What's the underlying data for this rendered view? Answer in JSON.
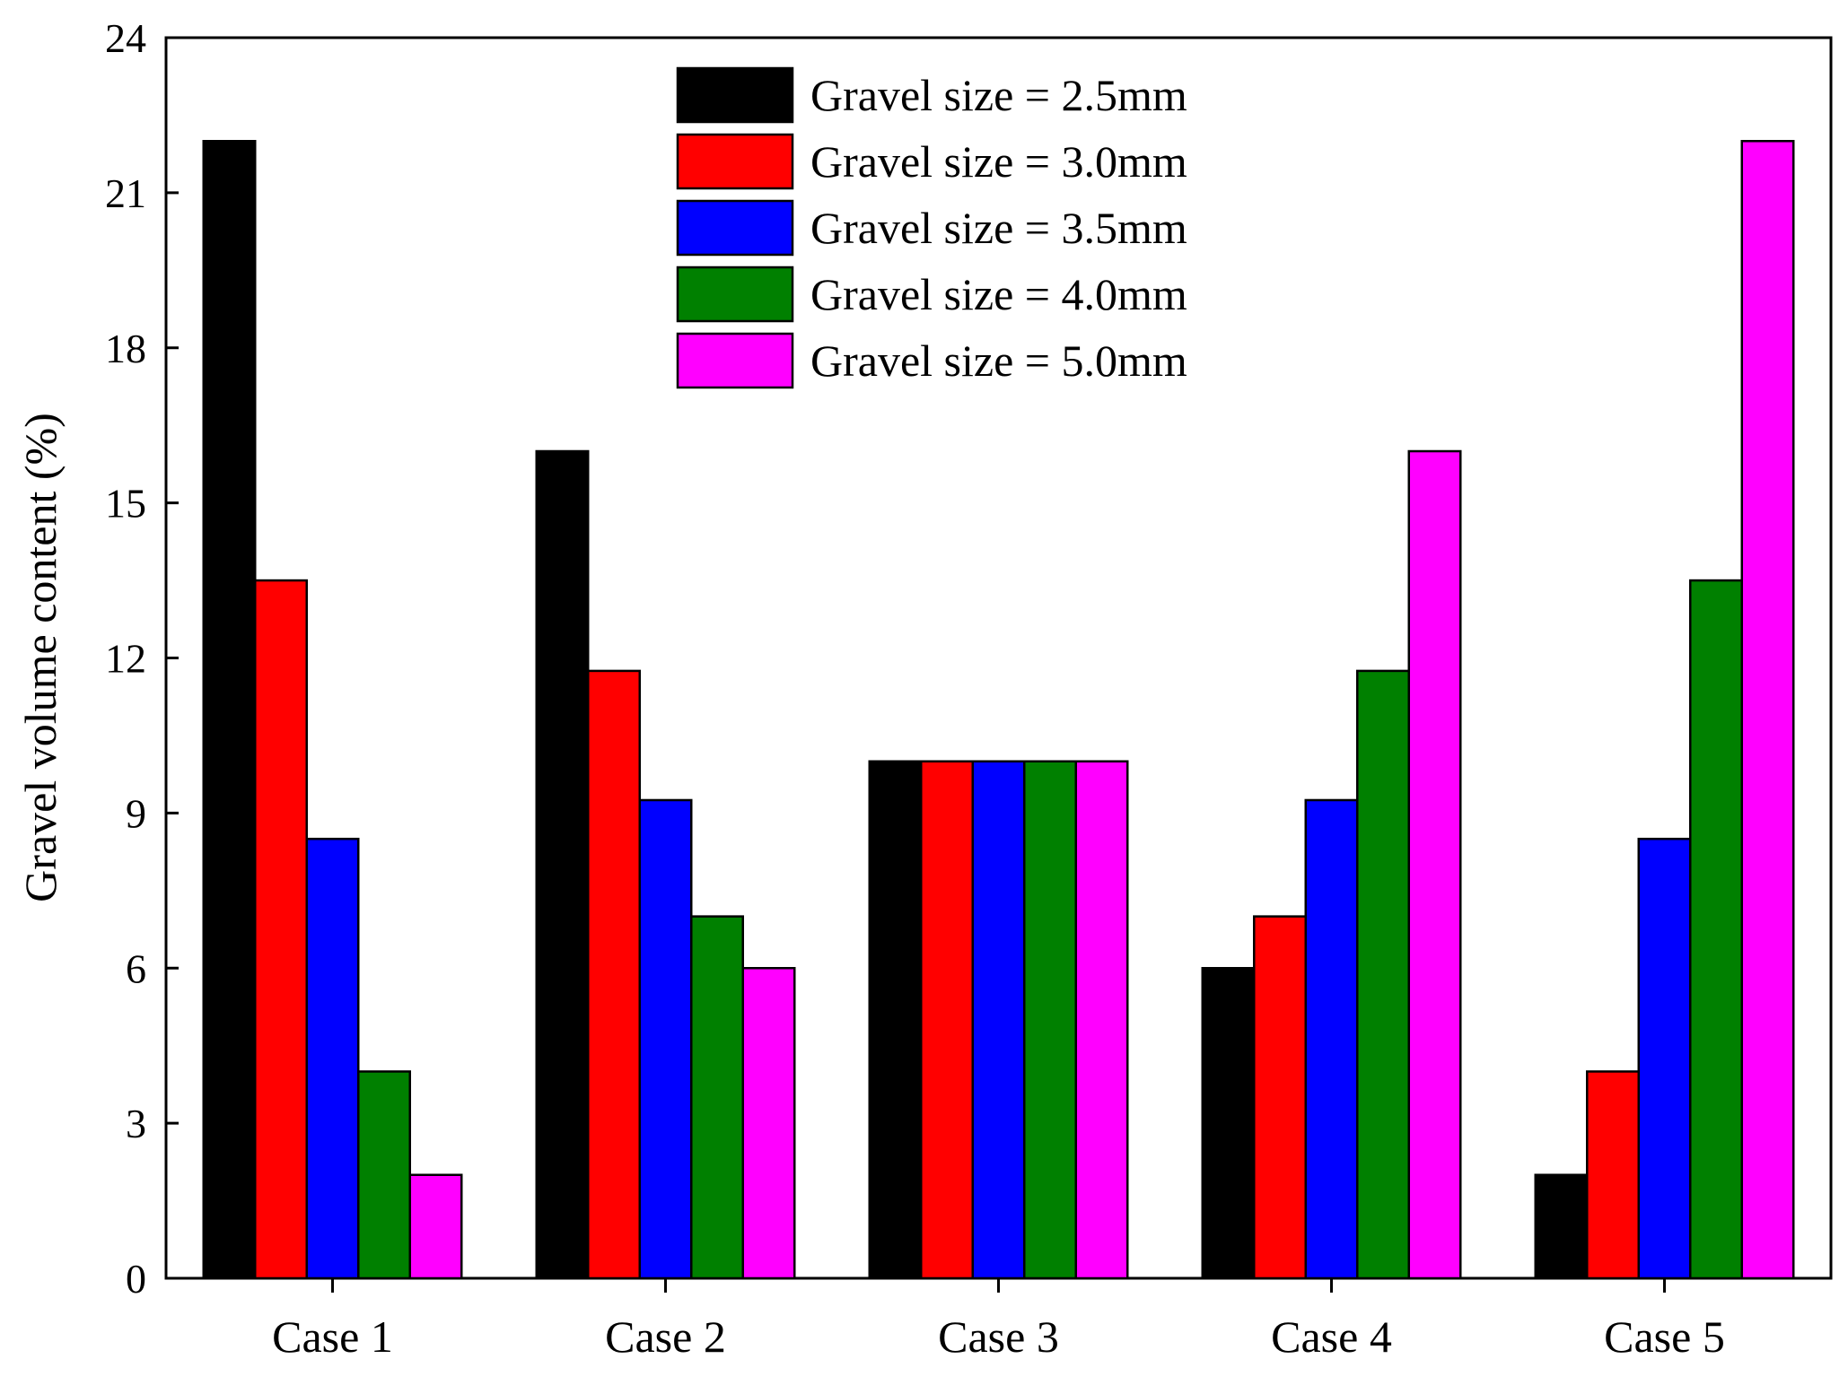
{
  "chart_data": {
    "type": "bar",
    "title": "",
    "xlabel": "",
    "ylabel": "Gravel volume content (%)",
    "ylim": [
      0,
      24
    ],
    "yticks": [
      "0",
      "3",
      "6",
      "9",
      "12",
      "15",
      "18",
      "21",
      "24"
    ],
    "grid": false,
    "legend_position": "top-center",
    "categories": [
      "Case 1",
      "Case 2",
      "Case 3",
      "Case 4",
      "Case 5"
    ],
    "series": [
      {
        "name": "Gravel size = 2.5mm",
        "color": "#000000",
        "values": [
          22,
          16,
          10,
          6,
          2
        ]
      },
      {
        "name": "Gravel size = 3.0mm",
        "color": "#ff0000",
        "values": [
          13.5,
          11.75,
          10,
          7,
          4
        ]
      },
      {
        "name": "Gravel size = 3.5mm",
        "color": "#0000ff",
        "values": [
          8.5,
          9.25,
          10,
          9.25,
          8.5
        ]
      },
      {
        "name": "Gravel size = 4.0mm",
        "color": "#008000",
        "values": [
          4,
          7,
          10,
          11.75,
          13.5
        ]
      },
      {
        "name": "Gravel size = 5.0mm",
        "color": "#ff00ff",
        "values": [
          2,
          6,
          10,
          16,
          22
        ]
      }
    ]
  }
}
